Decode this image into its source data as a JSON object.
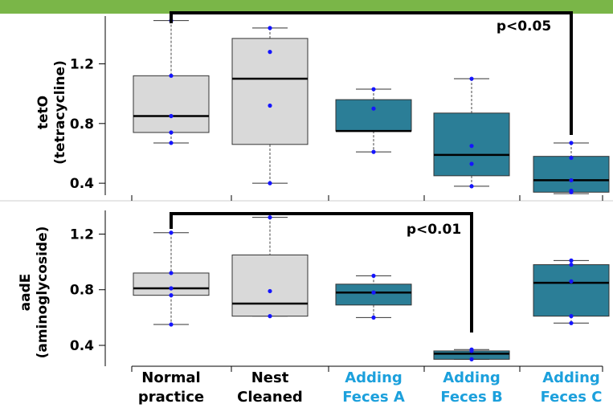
{
  "chart_data": [
    {
      "type": "box",
      "ylabel_line1": "tetO",
      "ylabel_line2": "(tetracycline)",
      "ylim": [
        0.32,
        1.52
      ],
      "yticks": [
        "0.4",
        "0.8",
        "1.2"
      ],
      "ytick_values": [
        0.4,
        0.8,
        1.2
      ],
      "significance": "p<0.05",
      "significance_from": "Normal practice",
      "significance_to": "Adding Feces C",
      "boxes": [
        {
          "category": "Normal practice",
          "whisker_low": 0.67,
          "q1": 0.74,
          "median": 0.85,
          "q3": 1.12,
          "whisker_high": 1.49,
          "points": [
            1.49,
            1.12,
            0.85,
            0.74,
            0.67
          ]
        },
        {
          "category": "Nest Cleaned",
          "whisker_low": 0.4,
          "q1": 0.66,
          "median": 1.1,
          "q3": 1.37,
          "whisker_high": 1.44,
          "points": [
            1.44,
            1.28,
            0.92,
            0.4
          ]
        },
        {
          "category": "Adding Feces A",
          "whisker_low": 0.61,
          "q1": 0.75,
          "median": 0.75,
          "q3": 0.96,
          "whisker_high": 1.03,
          "points": [
            1.03,
            0.9,
            0.61
          ]
        },
        {
          "category": "Adding Feces B",
          "whisker_low": 0.38,
          "q1": 0.45,
          "median": 0.59,
          "q3": 0.87,
          "whisker_high": 1.1,
          "points": [
            1.1,
            0.65,
            0.53,
            0.38
          ]
        },
        {
          "category": "Adding Feces C",
          "whisker_low": 0.33,
          "q1": 0.34,
          "median": 0.42,
          "q3": 0.58,
          "whisker_high": 0.67,
          "points": [
            0.67,
            0.57,
            0.42,
            0.35,
            0.34
          ]
        }
      ]
    },
    {
      "type": "box",
      "ylabel_line1": "aadE",
      "ylabel_line2": "(aminoglycoside)",
      "ylim": [
        0.25,
        1.37
      ],
      "yticks": [
        "0.4",
        "0.8",
        "1.2"
      ],
      "ytick_values": [
        0.4,
        0.8,
        1.2
      ],
      "significance": "p<0.01",
      "significance_from": "Normal practice",
      "significance_to": "Adding Feces B",
      "boxes": [
        {
          "category": "Normal practice",
          "whisker_low": 0.55,
          "q1": 0.76,
          "median": 0.81,
          "q3": 0.92,
          "whisker_high": 1.21,
          "points": [
            1.21,
            0.92,
            0.81,
            0.76,
            0.55
          ]
        },
        {
          "category": "Nest Cleaned",
          "whisker_low": 0.61,
          "q1": 0.61,
          "median": 0.7,
          "q3": 1.05,
          "whisker_high": 1.32,
          "points": [
            1.32,
            0.79,
            0.61
          ]
        },
        {
          "category": "Adding Feces A",
          "whisker_low": 0.6,
          "q1": 0.69,
          "median": 0.78,
          "q3": 0.84,
          "whisker_high": 0.9,
          "points": [
            0.9,
            0.78,
            0.6
          ]
        },
        {
          "category": "Adding Feces B",
          "whisker_low": 0.3,
          "q1": 0.3,
          "median": 0.34,
          "q3": 0.36,
          "whisker_high": 0.37,
          "points": [
            0.37,
            0.36,
            0.3
          ]
        },
        {
          "category": "Adding Feces C",
          "whisker_low": 0.56,
          "q1": 0.61,
          "median": 0.85,
          "q3": 0.98,
          "whisker_high": 1.01,
          "points": [
            1.01,
            0.98,
            0.86,
            0.61,
            0.56
          ]
        }
      ]
    }
  ],
  "categories": [
    {
      "line1": "Normal",
      "line2": "practice",
      "color": "#000000"
    },
    {
      "line1": "Nest",
      "line2": "Cleaned",
      "color": "#000000"
    },
    {
      "line1": "Adding",
      "line2": "Feces A",
      "color": "#1ca0dc"
    },
    {
      "line1": "Adding",
      "line2": "Feces B",
      "color": "#1ca0dc"
    },
    {
      "line1": "Adding",
      "line2": "Feces C",
      "color": "#1ca0dc"
    }
  ],
  "colors": {
    "banner": "#7ab648",
    "box_control": "#d9d9d9",
    "box_treatment": "#2b7e97",
    "point": "#1515ff"
  }
}
